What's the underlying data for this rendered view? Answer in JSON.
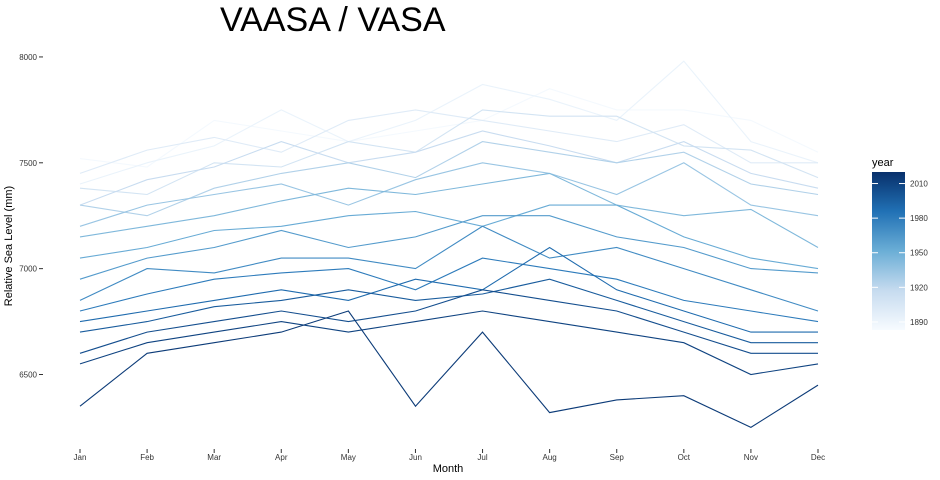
{
  "chart_data": {
    "type": "line",
    "title": "VAASA / VASA",
    "xlabel": "Month",
    "ylabel": "Relative Sea Level (mm)",
    "categories": [
      "Jan",
      "Feb",
      "Mar",
      "Apr",
      "May",
      "Jun",
      "Jul",
      "Aug",
      "Sep",
      "Oct",
      "Nov",
      "Dec"
    ],
    "y_ticks": [
      "6500",
      "7000",
      "7500",
      "8000"
    ],
    "ylim": [
      6200,
      8080
    ],
    "grid": false,
    "legend": {
      "title": "year",
      "position": "right",
      "ticks": [
        "2010",
        "1980",
        "1950",
        "1920",
        "1890"
      ],
      "range": [
        1883,
        2020
      ],
      "colors": {
        "low": "#f7fbff",
        "high": "#08306b"
      }
    },
    "year_range": [
      1883,
      2016
    ],
    "series": [
      {
        "year": 1885,
        "values": [
          7520,
          7480,
          7700,
          7650,
          7600,
          7650,
          7700,
          7850,
          7750,
          7750,
          7700,
          7550
        ]
      },
      {
        "year": 1892,
        "values": [
          7400,
          7500,
          7580,
          7750,
          7600,
          7700,
          7870,
          7800,
          7700,
          7980,
          7600,
          7500
        ]
      },
      {
        "year": 1900,
        "values": [
          7450,
          7560,
          7620,
          7550,
          7700,
          7750,
          7700,
          7650,
          7600,
          7680,
          7500,
          7500
        ]
      },
      {
        "year": 1908,
        "values": [
          7380,
          7350,
          7500,
          7480,
          7600,
          7550,
          7750,
          7720,
          7720,
          7580,
          7560,
          7430
        ]
      },
      {
        "year": 1916,
        "values": [
          7300,
          7420,
          7480,
          7600,
          7500,
          7550,
          7650,
          7580,
          7500,
          7600,
          7450,
          7380
        ]
      },
      {
        "year": 1925,
        "values": [
          7300,
          7250,
          7380,
          7450,
          7500,
          7430,
          7600,
          7550,
          7500,
          7550,
          7400,
          7350
        ]
      },
      {
        "year": 1934,
        "values": [
          7200,
          7300,
          7350,
          7400,
          7300,
          7420,
          7500,
          7450,
          7350,
          7500,
          7300,
          7250
        ]
      },
      {
        "year": 1944,
        "values": [
          7150,
          7200,
          7250,
          7320,
          7380,
          7350,
          7400,
          7450,
          7300,
          7250,
          7280,
          7100
        ]
      },
      {
        "year": 1953,
        "values": [
          7050,
          7100,
          7180,
          7200,
          7250,
          7270,
          7200,
          7300,
          7300,
          7150,
          7050,
          7000
        ]
      },
      {
        "year": 1962,
        "values": [
          6950,
          7050,
          7100,
          7180,
          7100,
          7150,
          7250,
          7250,
          7150,
          7100,
          7000,
          6980
        ]
      },
      {
        "year": 1971,
        "values": [
          6850,
          7000,
          6980,
          7050,
          7050,
          7000,
          7200,
          7050,
          7100,
          7000,
          6900,
          6800
        ]
      },
      {
        "year": 1980,
        "values": [
          6800,
          6880,
          6950,
          6980,
          7000,
          6900,
          7050,
          7000,
          6950,
          6850,
          6800,
          6750
        ]
      },
      {
        "year": 1989,
        "values": [
          6750,
          6800,
          6850,
          6900,
          6850,
          6950,
          6900,
          7100,
          6900,
          6800,
          6700,
          6700
        ]
      },
      {
        "year": 1997,
        "values": [
          6700,
          6750,
          6820,
          6850,
          6900,
          6850,
          6880,
          6950,
          6850,
          6750,
          6650,
          6650
        ]
      },
      {
        "year": 2004,
        "values": [
          6600,
          6700,
          6750,
          6800,
          6750,
          6800,
          6900,
          6850,
          6800,
          6700,
          6600,
          6600
        ]
      },
      {
        "year": 2010,
        "values": [
          6550,
          6650,
          6700,
          6750,
          6700,
          6750,
          6800,
          6750,
          6700,
          6650,
          6500,
          6550
        ]
      },
      {
        "year": 2014,
        "values": [
          6350,
          6600,
          6650,
          6700,
          6800,
          6350,
          6700,
          6320,
          6380,
          6400,
          6250,
          6450
        ]
      }
    ]
  }
}
